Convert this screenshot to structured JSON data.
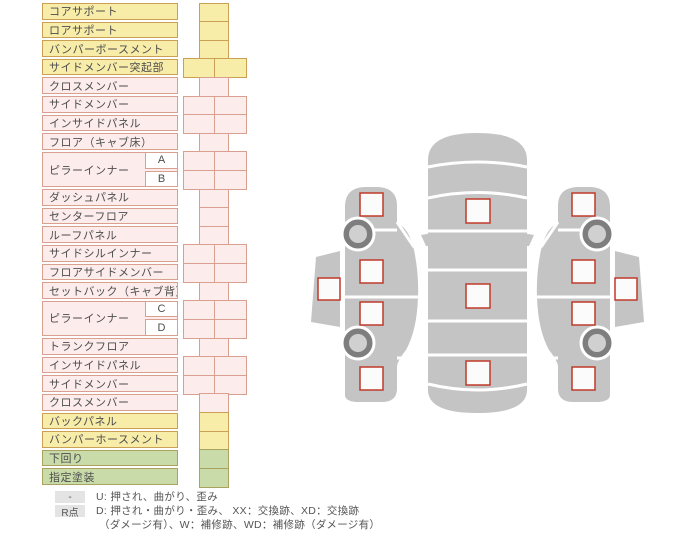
{
  "table": {
    "rows": [
      {
        "label": "コアサポート",
        "color": "yellow",
        "cells": 1
      },
      {
        "label": "ロアサポート",
        "color": "yellow",
        "cells": 1
      },
      {
        "label": "バンパーボースメント",
        "color": "yellow",
        "cells": 1
      },
      {
        "label": "サイドメンバー突起部",
        "color": "yellow",
        "cells": 2
      },
      {
        "label": "クロスメンバー",
        "color": "pink",
        "cells": 1
      },
      {
        "label": "サイドメンバー",
        "color": "pink",
        "cells": 2
      },
      {
        "label": "インサイドパネル",
        "color": "pink",
        "cells": 2
      },
      {
        "label": "フロア（キャブ床）",
        "color": "pink",
        "cells": 1
      },
      {
        "label": "ピラーインナー",
        "span": 2,
        "sub": "A",
        "color": "pink",
        "cells": 2
      },
      {
        "sub": "B",
        "color": "pink",
        "cells": 2
      },
      {
        "label": "ダッシュパネル",
        "color": "pink",
        "cells": 1
      },
      {
        "label": "センターフロア",
        "color": "pink",
        "cells": 1
      },
      {
        "label": "ルーフパネル",
        "color": "pink",
        "cells": 1
      },
      {
        "label": "サイドシルインナー",
        "color": "pink",
        "cells": 2
      },
      {
        "label": "フロアサイドメンバー",
        "color": "pink",
        "cells": 2
      },
      {
        "label": "セットバック（キャブ背）",
        "color": "pink",
        "cells": 1
      },
      {
        "label": "ピラーインナー",
        "span": 2,
        "sub": "C",
        "color": "pink",
        "cells": 2
      },
      {
        "sub": "D",
        "color": "pink",
        "cells": 2
      },
      {
        "label": "トランクフロア",
        "color": "pink",
        "cells": 1
      },
      {
        "label": "インサイドパネル",
        "color": "pink",
        "cells": 2
      },
      {
        "label": "サイドメンバー",
        "color": "pink",
        "cells": 2
      },
      {
        "label": "クロスメンバー",
        "color": "pink",
        "cells": 1
      },
      {
        "label": "バックパネル",
        "color": "yellow",
        "cells": 1
      },
      {
        "label": "バンパーホースメント",
        "color": "yellow",
        "cells": 1
      },
      {
        "label": "下回り",
        "color": "green",
        "cells": 1
      },
      {
        "label": "指定塗装",
        "color": "green",
        "cells": 1
      }
    ]
  },
  "legend": {
    "rows": [
      {
        "badge": "-",
        "text": "U: 押され、曲がり、歪み"
      },
      {
        "badge": "R点",
        "text": "D: 押され・曲がり・歪み、 XX：交換跡、XD：交換跡",
        "text2": "（ダメージ有）、W：補修跡、WD：補修跡（ダメージ有）"
      }
    ]
  },
  "diagram": {
    "markers": [
      {
        "id": "top-front"
      },
      {
        "id": "top-center"
      },
      {
        "id": "top-rear"
      },
      {
        "id": "left-front"
      },
      {
        "id": "left-front-door"
      },
      {
        "id": "left-rear-door"
      },
      {
        "id": "left-rear"
      },
      {
        "id": "left-outer"
      },
      {
        "id": "right-front"
      },
      {
        "id": "right-front-door"
      },
      {
        "id": "right-rear-door"
      },
      {
        "id": "right-rear"
      },
      {
        "id": "right-outer"
      }
    ]
  },
  "colors": {
    "row_yellow": "#f8eca9",
    "row_pink": "#fcecec",
    "row_green": "#c8dba9",
    "border_yellow": "#c9a054",
    "border_pink": "#d9a08f",
    "border_green": "#a9a35e",
    "car_gray": "#c4c4c4",
    "wheel_ring": "#7e7e7e",
    "wheel_hub": "#d0d0d0",
    "marker_fill": "#fbfbfb",
    "marker_border": "#c0392b",
    "legend_badge_bg": "#e4e4e4",
    "text": "#4d4d4d"
  }
}
